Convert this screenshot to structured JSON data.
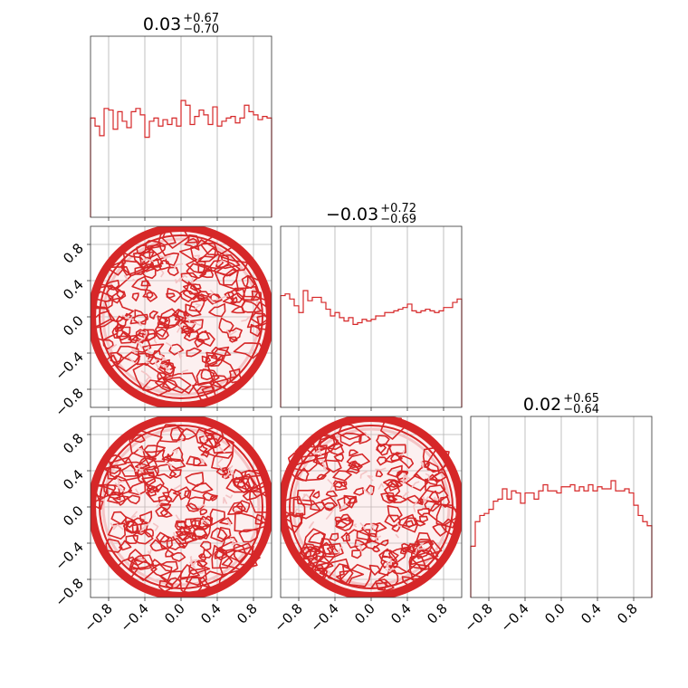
{
  "colors": {
    "series": "#d62728",
    "fill_light": "#f4c4c5",
    "grid": "#b0b0b0"
  },
  "chart_data": {
    "type": "corner",
    "range": [
      -1,
      1
    ],
    "ticks": [
      -0.8,
      -0.4,
      0.0,
      0.4,
      0.8
    ],
    "tick_labels": [
      "−0.8",
      "−0.4",
      "0.0",
      "0.4",
      "0.8"
    ],
    "grid": true,
    "titles": [
      {
        "main": "0.03",
        "upper": "+0.67",
        "lower": "−0.70"
      },
      {
        "main": "−0.03",
        "upper": "+0.72",
        "lower": "−0.69"
      },
      {
        "main": "0.02",
        "upper": "+0.65",
        "lower": "−0.64"
      }
    ],
    "histograms": [
      {
        "bins": 40,
        "range": [
          -1,
          1
        ],
        "counts": [
          62,
          57,
          51,
          68,
          67,
          55,
          66,
          60,
          56,
          66,
          68,
          64,
          50,
          60,
          62,
          57,
          61,
          58,
          62,
          57,
          73,
          70,
          58,
          63,
          67,
          64,
          58,
          69,
          57,
          60,
          62,
          63,
          59,
          62,
          70,
          66,
          64,
          61,
          63,
          62
        ]
      },
      {
        "bins": 40,
        "range": [
          -1,
          1
        ],
        "counts": [
          66,
          67,
          64,
          60,
          56,
          69,
          63,
          65,
          65,
          62,
          58,
          54,
          56,
          53,
          51,
          53,
          49,
          50,
          52,
          51,
          52,
          54,
          54,
          56,
          56,
          57,
          58,
          59,
          61,
          57,
          56,
          57,
          58,
          57,
          56,
          57,
          59,
          59,
          62,
          64
        ]
      },
      {
        "bins": 40,
        "range": [
          -1,
          1
        ],
        "counts": [
          25,
          37,
          40,
          41,
          43,
          47,
          48,
          53,
          48,
          52,
          51,
          46,
          51,
          51,
          48,
          52,
          55,
          52,
          52,
          51,
          54,
          54,
          55,
          52,
          54,
          52,
          55,
          52,
          54,
          53,
          53,
          57,
          52,
          52,
          53,
          51,
          45,
          40,
          37,
          35
        ]
      }
    ],
    "scatter_2d": [
      {
        "x_param": 0,
        "y_param": 1,
        "support": "uniform disk, radius 1",
        "levels": 4
      },
      {
        "x_param": 0,
        "y_param": 2,
        "support": "uniform disk, radius 1",
        "levels": 4
      },
      {
        "x_param": 1,
        "y_param": 2,
        "support": "uniform disk, radius 1",
        "levels": 4
      }
    ]
  }
}
